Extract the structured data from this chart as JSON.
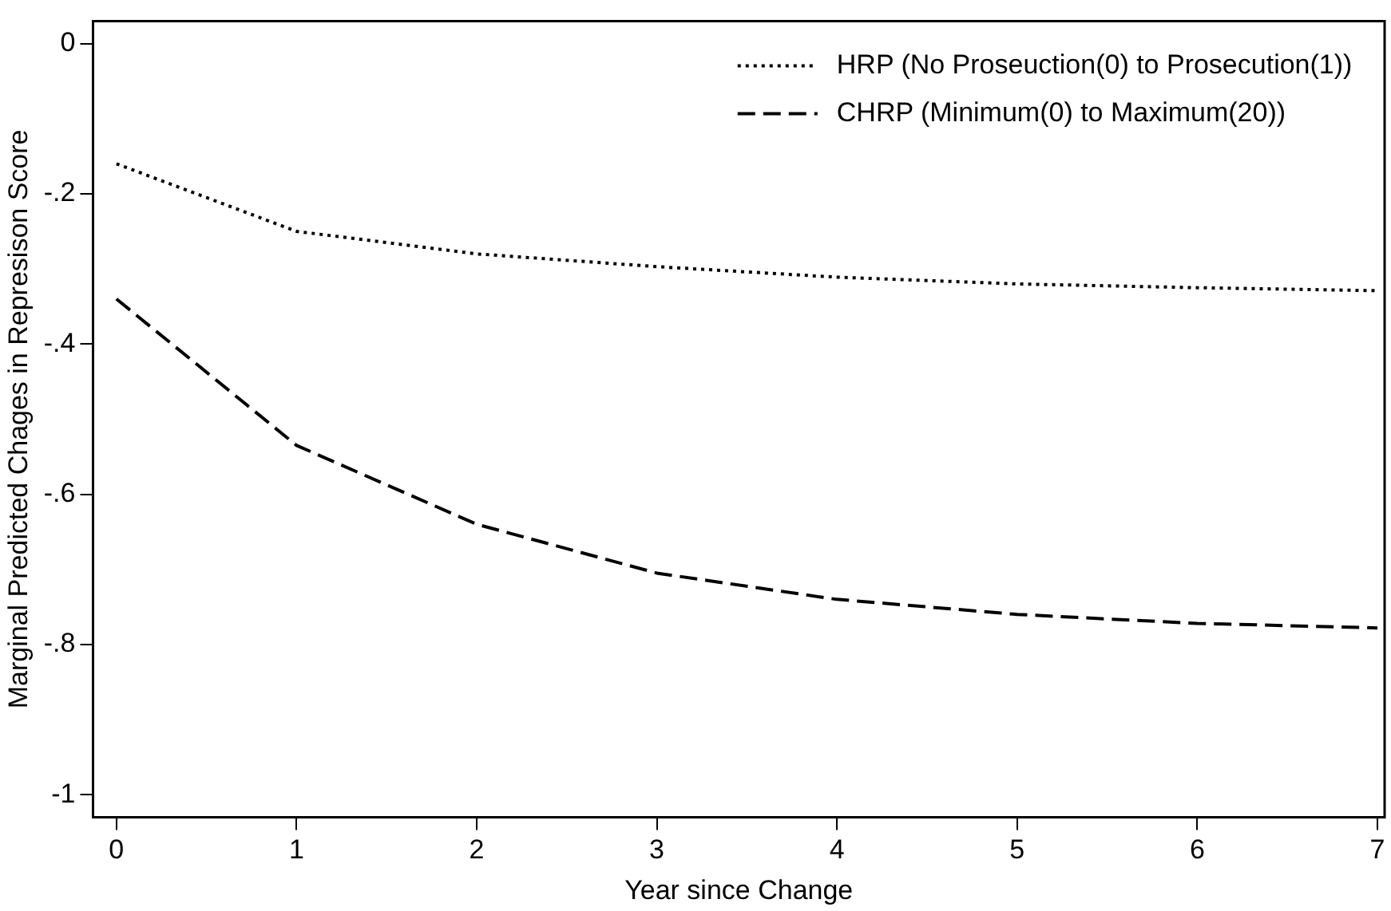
{
  "chart_data": {
    "type": "line",
    "xlabel": "Year since Change",
    "ylabel": "Marginal Predicted Chages in Represison Score",
    "x": [
      0,
      1,
      2,
      3,
      4,
      5,
      6,
      7
    ],
    "series": [
      {
        "name": "HRP (No Proseuction(0) to Prosecution(1))",
        "color": "#000000",
        "line_style": "dotted",
        "values": [
          -0.16,
          -0.25,
          -0.28,
          -0.297,
          -0.311,
          -0.32,
          -0.325,
          -0.329
        ]
      },
      {
        "name": "CHRP (Minimum(0) to Maximum(20))",
        "color": "#000000",
        "line_style": "dashed",
        "values": [
          -0.34,
          -0.535,
          -0.64,
          -0.705,
          -0.74,
          -0.76,
          -0.772,
          -0.778
        ]
      }
    ],
    "xlim": [
      -0.13,
      7.04
    ],
    "ylim": [
      -1.03,
      0.03
    ],
    "xticks": [
      0,
      1,
      2,
      3,
      4,
      5,
      6,
      7
    ],
    "yticks": [
      {
        "value": 0,
        "label": "0"
      },
      {
        "value": -0.2,
        "label": "-.2"
      },
      {
        "value": -0.4,
        "label": "-.4"
      },
      {
        "value": -0.6,
        "label": "-.6"
      },
      {
        "value": -0.8,
        "label": "-.8"
      },
      {
        "value": -1,
        "label": "-1"
      }
    ],
    "grid": false,
    "legend": "top right",
    "marker": "none"
  }
}
